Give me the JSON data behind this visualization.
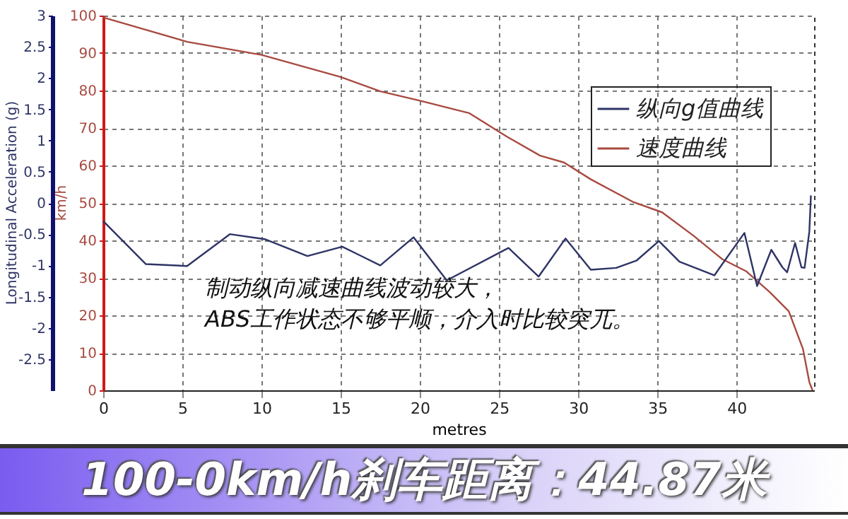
{
  "chart_data": {
    "type": "line",
    "title": "100-0km/h刹车距离：44.87米",
    "xlabel": "metres",
    "ylabel": "km/h",
    "y2label": "Longitudinal Acceleration (g)",
    "annotations": [
      "制动纵向减速曲线波动较大，\nABS工作状态不够平顺，介入时比较突兀。"
    ],
    "xlim": [
      0,
      44.9
    ],
    "xticks": [
      0,
      5,
      10,
      15,
      20,
      25,
      30,
      35,
      40
    ],
    "ylim": [
      0,
      100
    ],
    "yticks": [
      0,
      10,
      20,
      30,
      40,
      50,
      60,
      70,
      80,
      90,
      100
    ],
    "y2lim": [
      -3,
      3
    ],
    "y2ticks": [
      -2.5,
      -2,
      -1.5,
      -1,
      -0.5,
      0,
      0.5,
      1,
      1.5,
      2,
      2.5,
      3
    ],
    "grid": true,
    "legend": "top right",
    "line_style": "solid",
    "series": [
      {
        "name": "纵向g值曲线",
        "color": "#2e3466",
        "axis": "y2",
        "x": [
          0,
          2.7,
          5.3,
          8.0,
          10.2,
          12.9,
          15.1,
          17.5,
          19.6,
          21.7,
          25.6,
          27.5,
          29.2,
          30.8,
          32.4,
          33.7,
          35.1,
          36.4,
          38.6,
          40.5,
          41.3,
          42.2,
          42.9,
          43.2,
          43.7,
          44.1,
          44.3,
          44.6,
          44.7
        ],
        "values": [
          -0.29,
          -0.98,
          -1.01,
          -0.5,
          -0.58,
          -0.85,
          -0.7,
          -1.0,
          -0.55,
          -1.24,
          -0.72,
          -1.18,
          -0.57,
          -1.07,
          -1.04,
          -0.92,
          -0.61,
          -0.94,
          -1.16,
          -0.48,
          -1.33,
          -0.75,
          -1.03,
          -1.11,
          -0.64,
          -1.03,
          -1.04,
          -0.46,
          0.12
        ]
      },
      {
        "name": "速度曲线",
        "color": "#a84a40",
        "x": [
          0,
          5.3,
          10,
          15,
          17.5,
          20,
          23.1,
          25.5,
          27.6,
          29.1,
          30.8,
          33.5,
          35.3,
          37.3,
          39.1,
          40.6,
          42.1,
          43.3,
          44.2,
          44.6,
          44.8
        ],
        "values": [
          99.5,
          93,
          89.5,
          83.6,
          79.8,
          77.3,
          74,
          67.7,
          62.6,
          60.8,
          56.3,
          50.2,
          47.5,
          41.2,
          35,
          31.8,
          26.2,
          21.1,
          11,
          2.2,
          0
        ]
      }
    ]
  }
}
